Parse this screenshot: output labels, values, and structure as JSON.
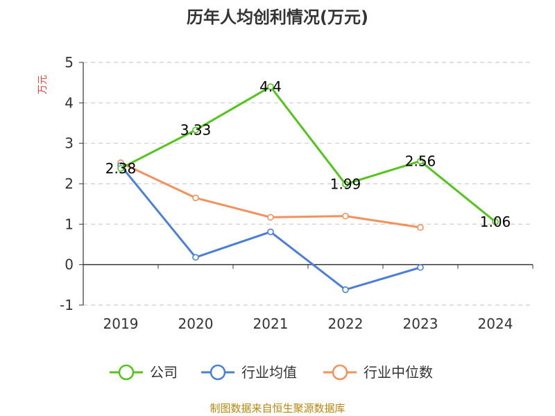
{
  "chart_data": {
    "type": "line",
    "title": "历年人均创利情况(万元)",
    "ylabel": "万元",
    "xlabel": "",
    "categories": [
      "2019",
      "2020",
      "2021",
      "2022",
      "2023",
      "2024"
    ],
    "ylim": [
      -1,
      5
    ],
    "yticks": [
      -1,
      0,
      1,
      2,
      3,
      4,
      5
    ],
    "grid": true,
    "legend_position": "bottom",
    "series": [
      {
        "name": "公司",
        "values": [
          2.38,
          3.33,
          4.4,
          1.99,
          2.56,
          1.06
        ],
        "color": "#52c41a",
        "data_labels": [
          "2.38",
          "3.33",
          "4.4",
          "1.99",
          "2.56",
          "1.06"
        ]
      },
      {
        "name": "行业均值",
        "values": [
          2.45,
          0.18,
          0.81,
          -0.62,
          -0.07,
          null
        ],
        "color": "#4a7fd9"
      },
      {
        "name": "行业中位数",
        "values": [
          2.52,
          1.65,
          1.17,
          1.2,
          0.92,
          null
        ],
        "color": "#f5905c"
      }
    ],
    "source": "制图数据来自恒生聚源数据库"
  }
}
